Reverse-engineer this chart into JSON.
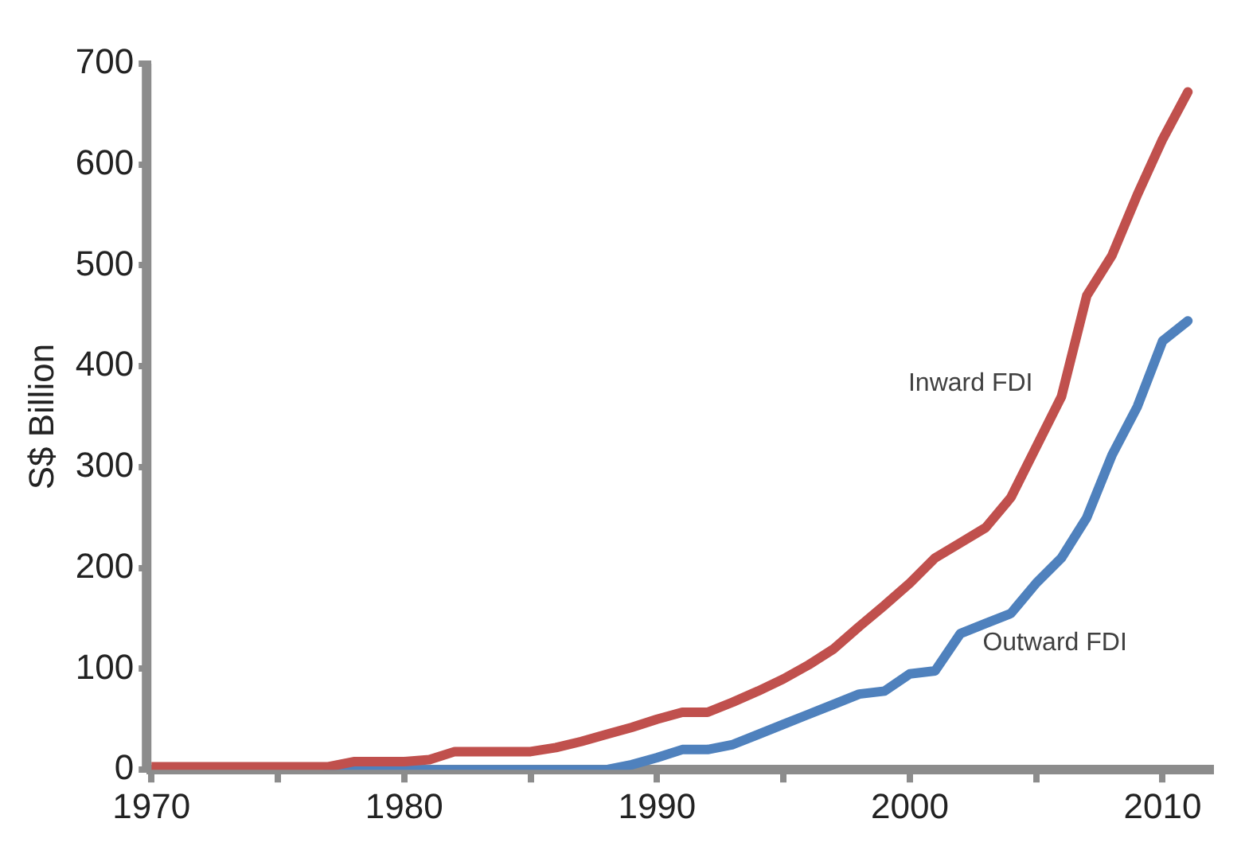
{
  "chart_data": {
    "type": "line",
    "ylabel": "S$ Billion",
    "x": [
      1970,
      1971,
      1972,
      1973,
      1974,
      1975,
      1976,
      1977,
      1978,
      1979,
      1980,
      1981,
      1982,
      1983,
      1984,
      1985,
      1986,
      1987,
      1988,
      1989,
      1990,
      1991,
      1992,
      1993,
      1994,
      1995,
      1996,
      1997,
      1998,
      1999,
      2000,
      2001,
      2002,
      2003,
      2004,
      2005,
      2006,
      2007,
      2008,
      2009,
      2010,
      2011
    ],
    "series": [
      {
        "name": "Inward FDI",
        "color": "#c0504d",
        "values": [
          3,
          3,
          3,
          3,
          3,
          3,
          3,
          3,
          8,
          8,
          8,
          10,
          18,
          18,
          18,
          18,
          22,
          28,
          35,
          42,
          50,
          57,
          57,
          67,
          78,
          90,
          104,
          120,
          142,
          163,
          185,
          210,
          225,
          240,
          270,
          320,
          370,
          470,
          510,
          570,
          625,
          672
        ]
      },
      {
        "name": "Outward FDI",
        "color": "#4f81bd",
        "values": [
          null,
          null,
          null,
          null,
          null,
          null,
          null,
          0,
          0,
          0,
          0,
          0,
          0,
          0,
          0,
          0,
          0,
          0,
          0,
          5,
          12,
          20,
          20,
          25,
          35,
          45,
          55,
          65,
          75,
          78,
          95,
          98,
          135,
          145,
          155,
          185,
          210,
          250,
          312,
          360,
          425,
          445
        ]
      }
    ],
    "xlim": [
      1970,
      2012
    ],
    "xticks": [
      1970,
      {
        "value": 1975,
        "label": null
      },
      1980,
      {
        "value": 1985,
        "label": null
      },
      1990,
      {
        "value": 1995,
        "label": null
      },
      2000,
      {
        "value": 2005,
        "label": null
      },
      2010
    ],
    "ylim": [
      0,
      700
    ],
    "yticks": [
      0,
      100,
      200,
      300,
      400,
      500,
      600,
      700
    ],
    "grid": false,
    "legend": false,
    "marker": "none",
    "line_style": "solid"
  }
}
